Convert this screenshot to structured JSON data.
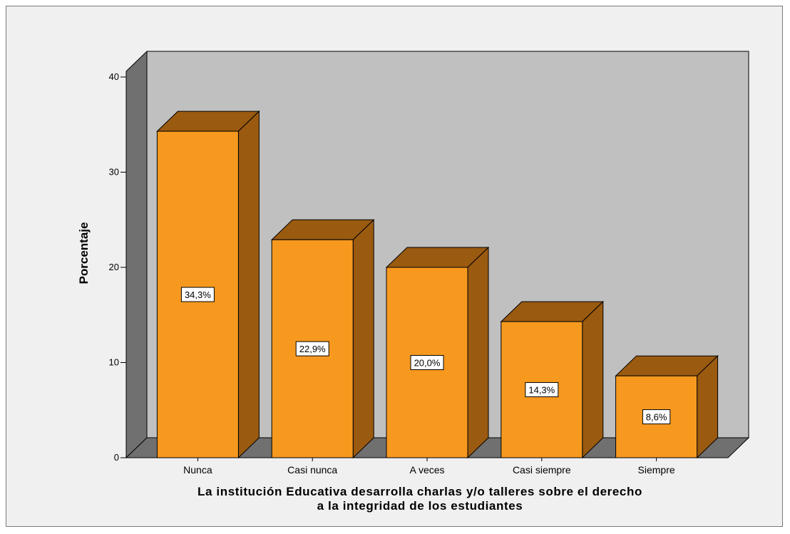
{
  "colors": {
    "background": "#f0f0f0",
    "plot_back_wall": "#c0c0c0",
    "plot_side_wall": "#707070",
    "plot_floor": "#707070",
    "bar_front": "#f7991f",
    "bar_top": "#9a5a10",
    "bar_side": "#9a5a10"
  },
  "chart_data": {
    "type": "bar",
    "style": "3d",
    "categories": [
      "Nunca",
      "Casi nunca",
      "A veces",
      "Casi siempre",
      "Siempre"
    ],
    "values": [
      34.3,
      22.9,
      20.0,
      14.3,
      8.6
    ],
    "data_labels": [
      "34,3%",
      "22,9%",
      "20,0%",
      "14,3%",
      "8,6%"
    ],
    "title": "",
    "xlabel_lines": [
      "La institución Educativa desarrolla charlas y/o talleres sobre el derecho",
      "a la integridad de los estudiantes"
    ],
    "ylabel": "Porcentaje",
    "yticks": [
      0,
      10,
      20,
      30,
      40
    ],
    "ylim": [
      0,
      40
    ],
    "grid": false,
    "legend": "none"
  }
}
